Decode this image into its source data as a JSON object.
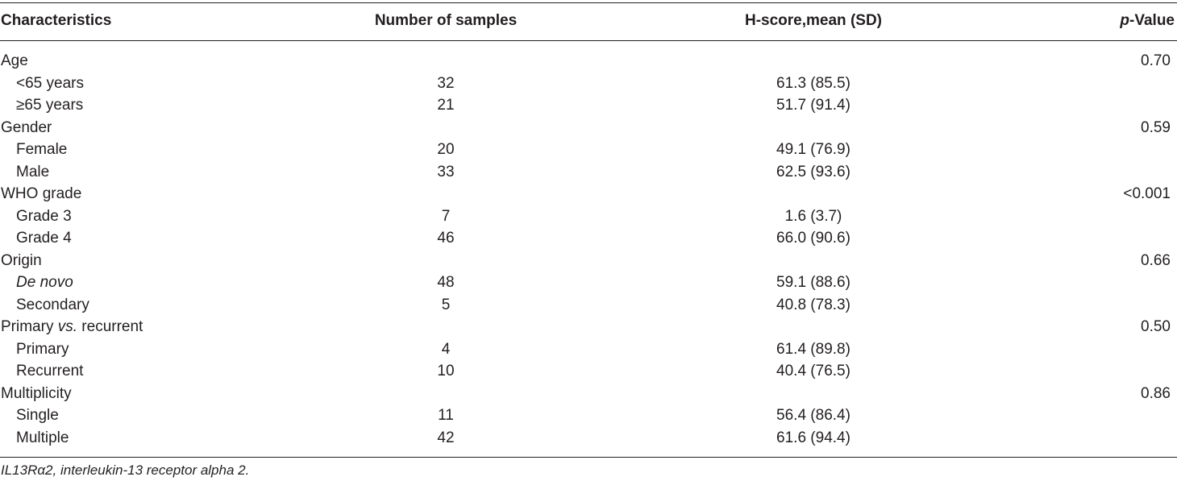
{
  "table": {
    "headers": {
      "characteristics": "Characteristics",
      "number_of_samples": "Number of samples",
      "h_score": "H-score,mean (SD)",
      "p_value_italic": "p",
      "p_value_rest": "-Value"
    },
    "rows": [
      {
        "label": "Age",
        "n": "",
        "h": "",
        "p": "0.70"
      },
      {
        "label": "<65 years",
        "n": "32",
        "h": "61.3 (85.5)",
        "p": ""
      },
      {
        "label": "≥65 years",
        "n": "21",
        "h": "51.7 (91.4)",
        "p": ""
      },
      {
        "label": "Gender",
        "n": "",
        "h": "",
        "p": "0.59"
      },
      {
        "label": "Female",
        "n": "20",
        "h": "49.1 (76.9)",
        "p": ""
      },
      {
        "label": "Male",
        "n": "33",
        "h": "62.5 (93.6)",
        "p": ""
      },
      {
        "label": "WHO grade",
        "n": "",
        "h": "",
        "p": "<0.001"
      },
      {
        "label": "Grade 3",
        "n": "7",
        "h": "1.6 (3.7)",
        "p": ""
      },
      {
        "label": "Grade 4",
        "n": "46",
        "h": "66.0 (90.6)",
        "p": ""
      },
      {
        "label": "Origin",
        "n": "",
        "h": "",
        "p": "0.66"
      },
      {
        "label": "De novo",
        "n": "48",
        "h": "59.1 (88.6)",
        "p": ""
      },
      {
        "label": "Secondary",
        "n": "5",
        "h": "40.8 (78.3)",
        "p": ""
      },
      {
        "label_a": "Primary ",
        "label_b": "vs.",
        "label_c": " recurrent",
        "n": "",
        "h": "",
        "p": "0.50"
      },
      {
        "label": "Primary",
        "n": "4",
        "h": "61.4 (89.8)",
        "p": ""
      },
      {
        "label": "Recurrent",
        "n": "10",
        "h": "40.4 (76.5)",
        "p": ""
      },
      {
        "label": "Multiplicity",
        "n": "",
        "h": "",
        "p": "0.86"
      },
      {
        "label": "Single",
        "n": "11",
        "h": "56.4 (86.4)",
        "p": ""
      },
      {
        "label": "Multiple",
        "n": "42",
        "h": "61.6 (94.4)",
        "p": ""
      }
    ]
  },
  "footnote": "IL13Rα2, interleukin-13 receptor alpha 2."
}
